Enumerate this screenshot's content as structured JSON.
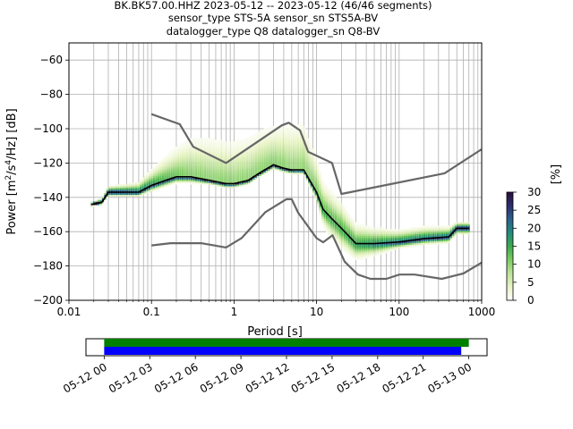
{
  "chart_data": {
    "type": "heatmap",
    "title_lines": [
      "BK.BK57.00.HHZ   2023-05-12 -- 2023-05-12  (46/46 segments)",
      "sensor_type STS-5A sensor_sn STS5A-BV",
      "datalogger_type Q8 datalogger_sn Q8-BV"
    ],
    "xlabel": "Period [s]",
    "ylabel": "Power [m²/s⁴/Hz] [dB]",
    "ylabel_parts": {
      "before": "Power [m",
      "sup1": "2",
      "mid1": "/s",
      "sup2": "4",
      "mid2": "/Hz] [dB]"
    },
    "x_scale": "log",
    "xlim": [
      0.01,
      1000
    ],
    "ylim": [
      -200,
      -50
    ],
    "x_ticks": [
      0.01,
      0.1,
      1,
      10,
      100,
      1000
    ],
    "x_tick_labels": [
      "0.01",
      "0.1",
      "1",
      "10",
      "100",
      "1000"
    ],
    "y_ticks": [
      -200,
      -180,
      -160,
      -140,
      -120,
      -100,
      -80,
      -60
    ],
    "y_tick_labels": [
      "−200",
      "−180",
      "−160",
      "−140",
      "−120",
      "−100",
      "−80",
      "−60"
    ],
    "grid": true,
    "colorbar": {
      "label": "[%]",
      "range": [
        0,
        30
      ],
      "ticks": [
        0,
        5,
        10,
        15,
        20,
        25,
        30
      ],
      "tick_labels": [
        "0",
        "5",
        "10",
        "15",
        "20",
        "25",
        "30"
      ],
      "colormap": [
        "#ffffff",
        "#e8f3c4",
        "#bde29a",
        "#7ccb62",
        "#3ea84e",
        "#238c7e",
        "#2c5f8c",
        "#2d2d6d",
        "#2a0f3a"
      ]
    },
    "series": [
      {
        "name": "",
        "role": "mode",
        "color": "#000000",
        "x": [
          0.019,
          0.025,
          0.03,
          0.05,
          0.07,
          0.1,
          0.15,
          0.2,
          0.3,
          0.5,
          0.8,
          1.0,
          1.5,
          2.0,
          3.0,
          4.0,
          5.0,
          7.0,
          10.0,
          12.0,
          15.0,
          20.0,
          30.0,
          50.0,
          100.0,
          200.0,
          400.0,
          500.0,
          700.0
        ],
        "y": [
          -144,
          -143,
          -137,
          -137,
          -137,
          -133,
          -130,
          -128,
          -128,
          -130,
          -132,
          -132,
          -130,
          -126,
          -121,
          -123,
          -124,
          -124,
          -137,
          -147,
          -152,
          -158,
          -167,
          -167,
          -166,
          -164,
          -163,
          -158,
          -158
        ]
      },
      {
        "name": "",
        "role": "NHNM",
        "color": "#666666",
        "x": [
          0.1,
          0.22,
          0.32,
          0.8,
          3.8,
          4.6,
          6.3,
          7.9,
          15.4,
          20.0,
          354.8,
          1000.0
        ],
        "y": [
          -91.5,
          -97.4,
          -110.5,
          -120.0,
          -98.0,
          -96.5,
          -101.0,
          -113.5,
          -120.0,
          -138.0,
          -126.0,
          -112.0
        ]
      },
      {
        "name": "",
        "role": "NLNM",
        "color": "#666666",
        "x": [
          0.1,
          0.17,
          0.4,
          0.8,
          1.24,
          2.4,
          4.3,
          5.0,
          6.0,
          10.0,
          12.0,
          15.6,
          21.9,
          31.6,
          45.0,
          70.0,
          101.0,
          154.0,
          328.0,
          600.0,
          1000.0
        ],
        "y": [
          -168.0,
          -166.7,
          -166.7,
          -169.2,
          -163.7,
          -148.6,
          -141.1,
          -141.1,
          -149.0,
          -163.8,
          -166.2,
          -162.1,
          -177.5,
          -185.0,
          -187.5,
          -187.5,
          -185.0,
          -185.0,
          -187.5,
          -184.4,
          -178.0
        ]
      }
    ],
    "histogram": {
      "ridge_x": [
        0.019,
        0.025,
        0.03,
        0.05,
        0.07,
        0.1,
        0.15,
        0.2,
        0.3,
        0.5,
        0.8,
        1.0,
        1.5,
        2.0,
        3.0,
        4.0,
        5.0,
        7.0,
        10.0,
        12.0,
        15.0,
        20.0,
        30.0,
        50.0,
        100.0,
        200.0,
        400.0,
        500.0,
        700.0
      ],
      "ridge_y": [
        -144,
        -143,
        -137,
        -137,
        -137,
        -133,
        -130,
        -128,
        -128,
        -130,
        -132,
        -132,
        -130,
        -126,
        -121,
        -123,
        -124,
        -124,
        -137,
        -147,
        -152,
        -158,
        -167,
        -167,
        -166,
        -164,
        -163,
        -158,
        -158
      ],
      "upper_spread_db": [
        1,
        2,
        3,
        4,
        5,
        8,
        12,
        15,
        20,
        22,
        22,
        22,
        22,
        22,
        20,
        22,
        24,
        24,
        18,
        14,
        14,
        13,
        10,
        8,
        6,
        6,
        5,
        3,
        3
      ],
      "lower_spread_db": [
        1,
        1,
        2,
        2,
        2,
        3,
        3,
        3,
        3,
        2,
        2,
        2,
        2,
        2,
        2,
        2,
        2,
        2,
        4,
        8,
        10,
        10,
        8,
        6,
        3,
        3,
        3,
        3,
        3
      ]
    },
    "data_coverage": {
      "time_ticks": [
        "05-12 00",
        "05-12 03",
        "05-12 06",
        "05-12 09",
        "05-12 12",
        "05-12 15",
        "05-12 18",
        "05-12 21",
        "05-13 00"
      ],
      "range_hours": [
        -1.2,
        25.2
      ],
      "bars": [
        {
          "color": "#008000",
          "start_hour": 0,
          "end_hour": 24.0
        },
        {
          "color": "#0000ff",
          "start_hour": 0,
          "end_hour": 23.5
        }
      ]
    }
  }
}
